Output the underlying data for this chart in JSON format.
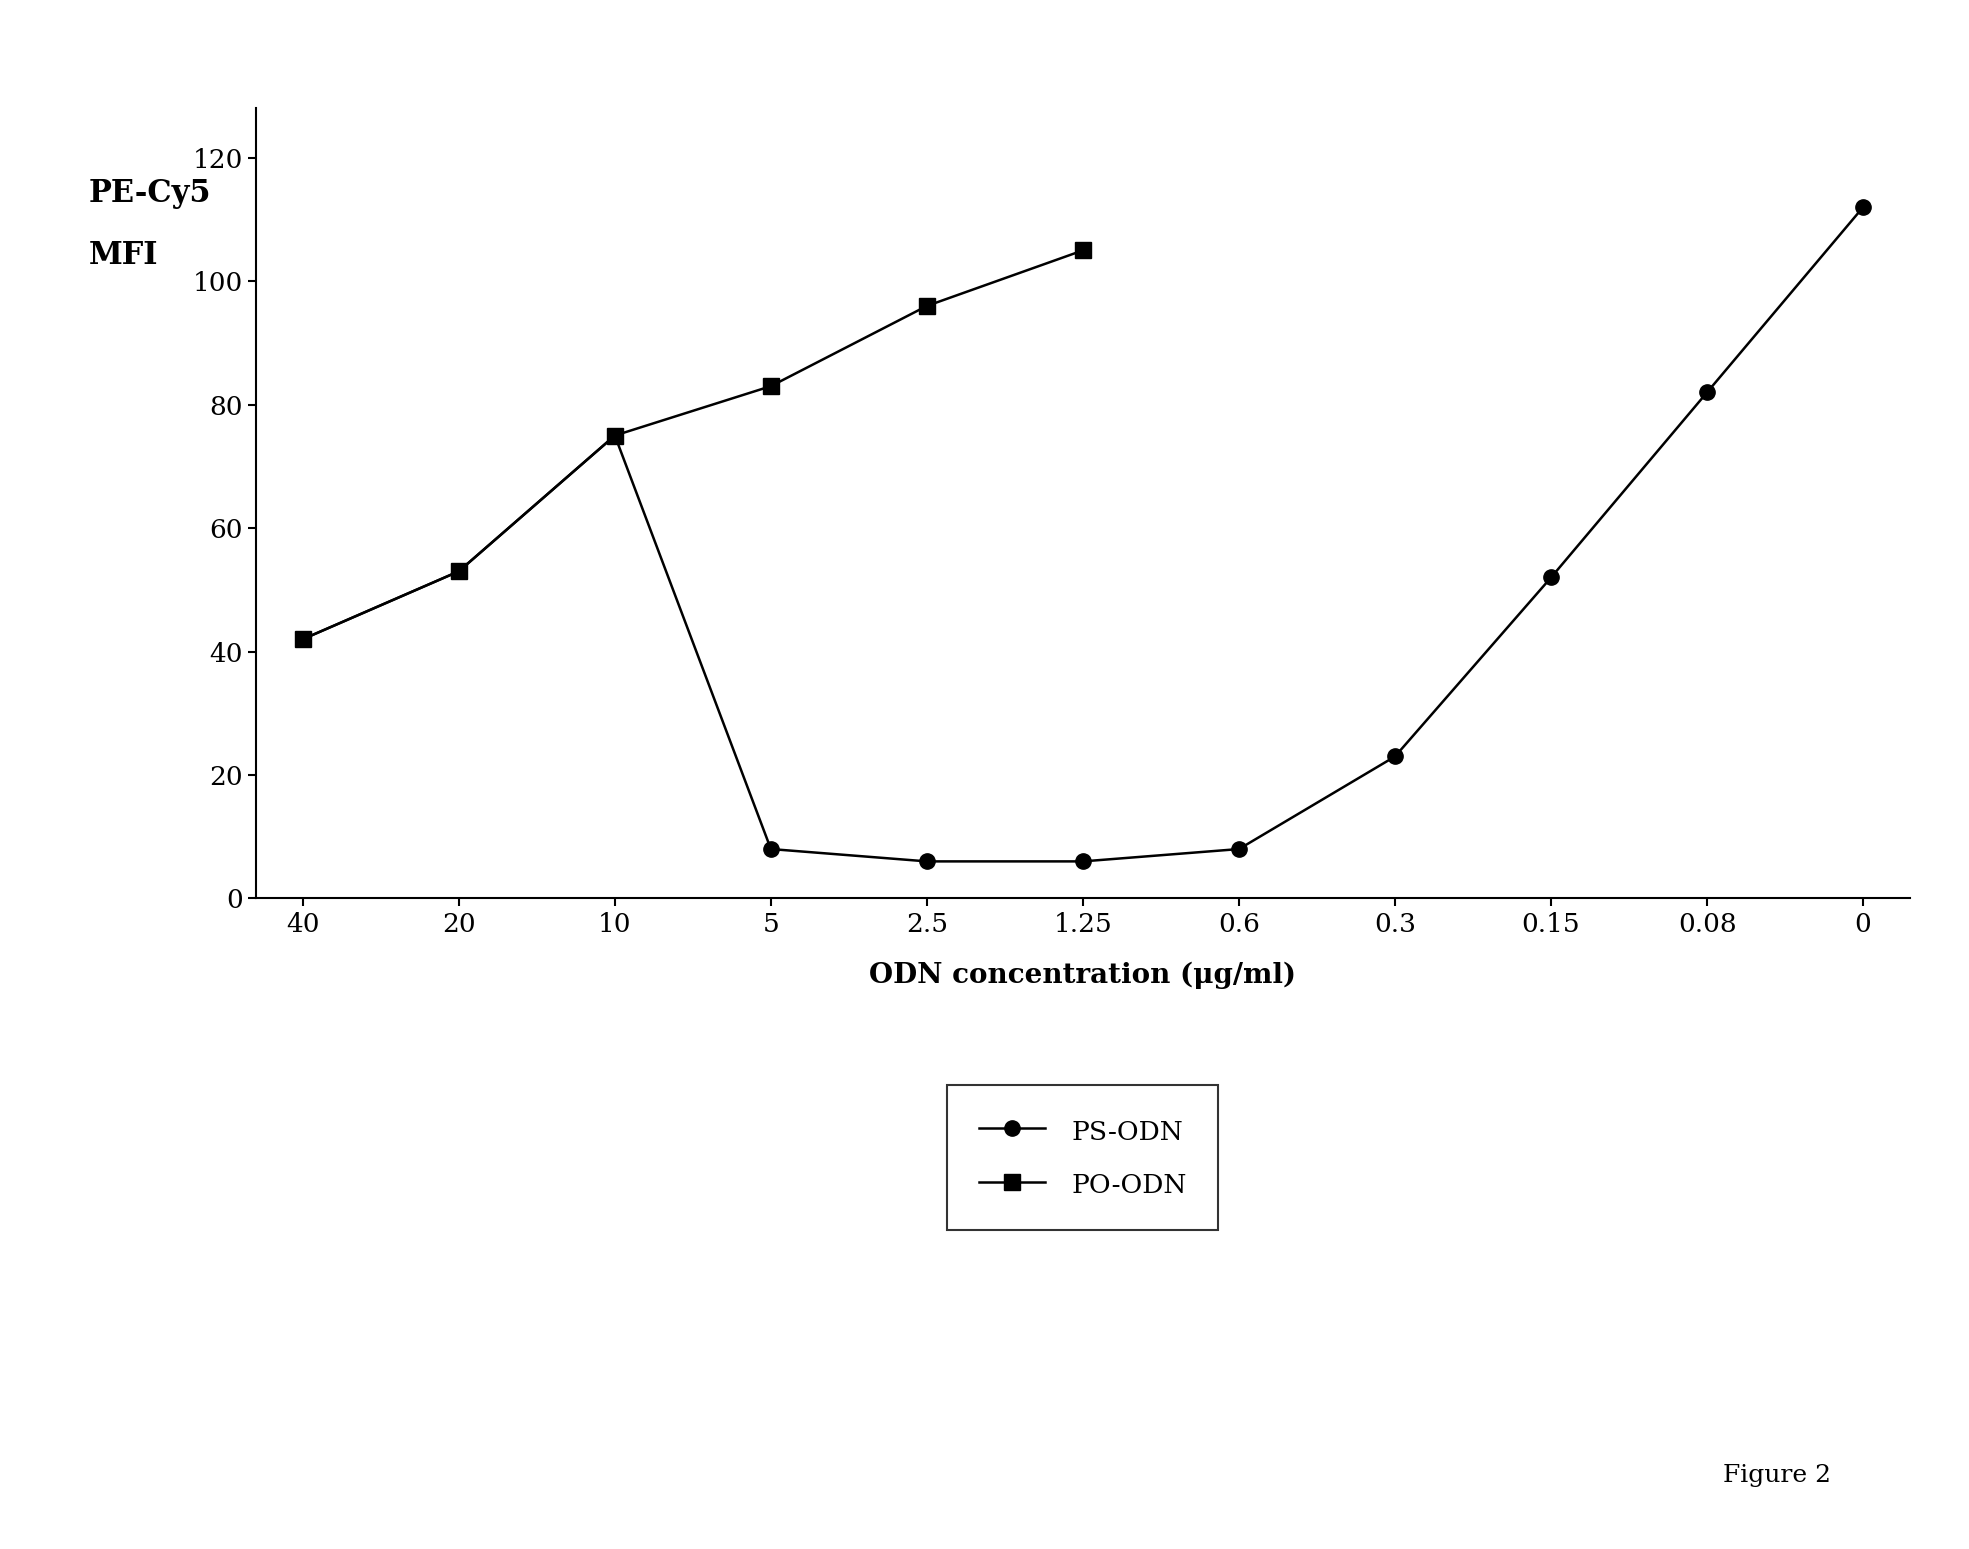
{
  "ps_odn_x": [
    0,
    1,
    2,
    3,
    4,
    5,
    6,
    7,
    8,
    9,
    10
  ],
  "ps_odn_y": [
    42,
    53,
    75,
    8,
    6,
    6,
    8,
    23,
    52,
    82,
    112
  ],
  "po_odn_x": [
    0,
    1,
    2,
    3,
    4,
    5
  ],
  "po_odn_y": [
    42,
    53,
    75,
    83,
    96,
    105
  ],
  "xtick_labels": [
    "40",
    "20",
    "10",
    "5",
    "2.5",
    "1.25",
    "0.6",
    "0.3",
    "0.15",
    "0.08",
    "0"
  ],
  "ylabel_line1": "PE-Cy5",
  "ylabel_line2": "MFI",
  "xlabel": "ODN concentration (μg/ml)",
  "ylim": [
    0,
    128
  ],
  "yticks": [
    0,
    20,
    40,
    60,
    80,
    100,
    120
  ],
  "legend_ps": "PS-ODN",
  "legend_po": "PO-ODN",
  "figure_label": "Figure 2",
  "line_color": "#000000",
  "bg_color": "#ffffff",
  "marker_circle": "o",
  "marker_square": "s",
  "marker_size": 11,
  "linewidth": 1.8,
  "axis_fontsize": 20,
  "tick_fontsize": 19,
  "legend_fontsize": 19,
  "ylabel_fontsize": 22,
  "figure_label_fontsize": 18
}
